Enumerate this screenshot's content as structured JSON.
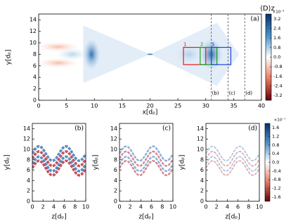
{
  "chart_data": [
    {
      "type": "heatmap",
      "panel_label": "(a)",
      "xlabel": "x[dₚ]",
      "ylabel": "y[dₚ]",
      "xlim": [
        0,
        40
      ],
      "ylim": [
        0,
        15
      ],
      "xticks": [
        0,
        5,
        10,
        15,
        20,
        25,
        30,
        35,
        40
      ],
      "yticks": [
        0,
        2,
        4,
        6,
        8,
        10,
        12,
        14
      ],
      "colorbar": {
        "label": "⟨D⟩z",
        "scale_label": "×10⁻⁴",
        "lim": [
          -3.6,
          3.6
        ],
        "ticks": [
          3.2,
          2.4,
          1.6,
          0.8,
          {
            "value": 0,
            "label": "0.0"
          },
          -0.8,
          -1.6,
          -2.4,
          -3.2
        ]
      },
      "regions": [
        {
          "label": "1",
          "color": "#e41a1c",
          "x": [
            26,
            30
          ],
          "y": [
            6.2,
            9.2
          ]
        },
        {
          "label": "2",
          "color": "#1a9a1a",
          "x": [
            29,
            32
          ],
          "y": [
            6.2,
            9.2
          ]
        },
        {
          "label": "3",
          "color": "#1f3fe0",
          "x": [
            31,
            34.5
          ],
          "y": [
            6.2,
            9.2
          ]
        }
      ],
      "markers": [
        {
          "label": "(b)",
          "x": 31
        },
        {
          "label": "(c)",
          "x": 34
        },
        {
          "label": "(d)",
          "x": 37
        }
      ]
    },
    {
      "type": "heatmap",
      "panel_label": "(b)",
      "xlabel": "z[dₚ]",
      "ylabel": "y[dₚ]",
      "xlim": [
        0,
        10
      ],
      "ylim": [
        0,
        15
      ],
      "xticks": [
        0,
        2,
        4,
        6,
        8,
        10
      ],
      "yticks": [
        0,
        2,
        4,
        6,
        8,
        10,
        12,
        14
      ]
    },
    {
      "type": "heatmap",
      "panel_label": "(c)",
      "xlabel": "z[dₚ]",
      "ylabel": "y[dₚ]",
      "xlim": [
        0,
        10
      ],
      "ylim": [
        0,
        15
      ],
      "xticks": [
        0,
        2,
        4,
        6,
        8,
        10
      ],
      "yticks": [
        0,
        2,
        4,
        6,
        8,
        10,
        12,
        14
      ]
    },
    {
      "type": "heatmap",
      "panel_label": "(d)",
      "xlabel": "z[dₚ]",
      "ylabel": "y[dₚ]",
      "xlim": [
        0,
        10
      ],
      "ylim": [
        0,
        15
      ],
      "xticks": [
        0,
        2,
        4,
        6,
        8,
        10
      ],
      "yticks": [
        0,
        2,
        4,
        6,
        8,
        10,
        12,
        14
      ],
      "colorbar": {
        "scale_label": "×10⁻⁷",
        "lim": [
          -1.8,
          1.8
        ],
        "ticks": [
          1.6,
          1.2,
          0.8,
          0.4,
          {
            "value": 0,
            "label": "0.0"
          },
          -0.4,
          -0.8,
          -1.2,
          -1.6
        ]
      }
    }
  ]
}
